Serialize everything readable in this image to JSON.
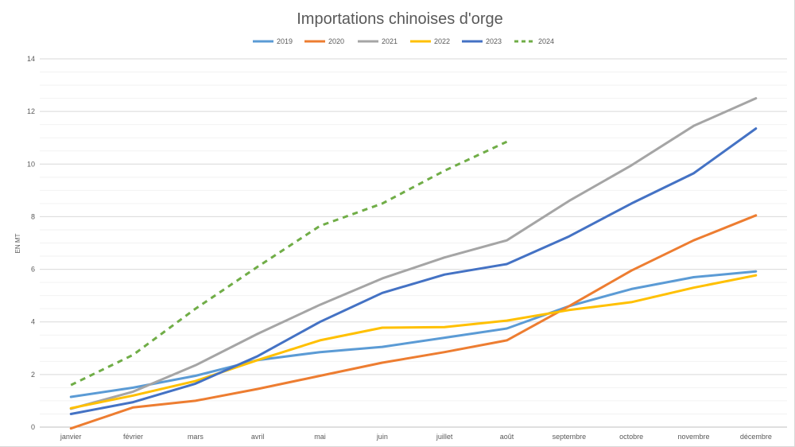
{
  "chart_data": {
    "type": "line",
    "title": "Importations chinoises d'orge",
    "xlabel": "",
    "ylabel": "EN MT",
    "ylim": [
      0,
      14
    ],
    "yticks": [
      "0",
      "2",
      "4",
      "6",
      "8",
      "10",
      "12",
      "14"
    ],
    "grid": true,
    "legend_position": "top-center",
    "categories": [
      "janvier",
      "février",
      "mars",
      "avril",
      "mai",
      "juin",
      "juillet",
      "août",
      "septembre",
      "octobre",
      "novembre",
      "décembre"
    ],
    "series": [
      {
        "name": "2019",
        "color": "#5b9bd5",
        "dashed": false,
        "values": [
          1.15,
          1.5,
          1.95,
          2.55,
          2.85,
          3.05,
          3.4,
          3.75,
          4.6,
          5.25,
          5.7,
          5.92
        ]
      },
      {
        "name": "2020",
        "color": "#ed7d31",
        "dashed": false,
        "values": [
          -0.05,
          0.75,
          1.0,
          1.45,
          1.95,
          2.45,
          2.85,
          3.3,
          4.6,
          5.95,
          7.1,
          8.05
        ]
      },
      {
        "name": "2021",
        "color": "#a5a5a5",
        "dashed": false,
        "values": [
          0.7,
          1.35,
          2.35,
          3.55,
          4.65,
          5.65,
          6.45,
          7.1,
          8.6,
          9.95,
          11.45,
          12.5
        ]
      },
      {
        "name": "2022",
        "color": "#ffc000",
        "dashed": false,
        "values": [
          0.72,
          1.2,
          1.75,
          2.55,
          3.3,
          3.78,
          3.8,
          4.05,
          4.45,
          4.75,
          5.3,
          5.77
        ]
      },
      {
        "name": "2023",
        "color": "#4472c4",
        "dashed": false,
        "values": [
          0.5,
          0.95,
          1.65,
          2.7,
          4.0,
          5.1,
          5.8,
          6.2,
          7.25,
          8.5,
          9.65,
          11.35
        ]
      },
      {
        "name": "2024",
        "color": "#70ad47",
        "dashed": true,
        "values": [
          1.6,
          2.75,
          4.5,
          6.1,
          7.65,
          8.5,
          9.75,
          10.85,
          null,
          null,
          null,
          null
        ]
      }
    ]
  }
}
